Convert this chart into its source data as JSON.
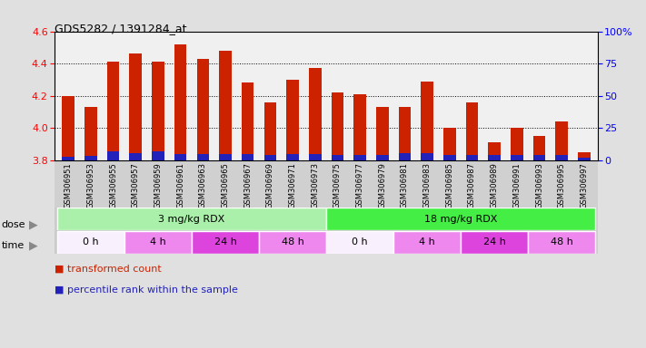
{
  "title": "GDS5282 / 1391284_at",
  "samples": [
    "GSM306951",
    "GSM306953",
    "GSM306955",
    "GSM306957",
    "GSM306959",
    "GSM306961",
    "GSM306963",
    "GSM306965",
    "GSM306967",
    "GSM306969",
    "GSM306971",
    "GSM306973",
    "GSM306975",
    "GSM306977",
    "GSM306979",
    "GSM306981",
    "GSM306983",
    "GSM306985",
    "GSM306987",
    "GSM306989",
    "GSM306991",
    "GSM306993",
    "GSM306995",
    "GSM306997"
  ],
  "transformed_count": [
    4.2,
    4.13,
    4.41,
    4.46,
    4.41,
    4.52,
    4.43,
    4.48,
    4.28,
    4.16,
    4.3,
    4.37,
    4.22,
    4.21,
    4.13,
    4.13,
    4.29,
    4.0,
    4.16,
    3.91,
    4.0,
    3.95,
    4.04,
    3.85
  ],
  "percentile_heights": [
    0.02,
    0.025,
    0.055,
    0.045,
    0.055,
    0.04,
    0.04,
    0.04,
    0.04,
    0.035,
    0.04,
    0.04,
    0.035,
    0.035,
    0.035,
    0.045,
    0.045,
    0.035,
    0.035,
    0.035,
    0.035,
    0.035,
    0.035,
    0.018
  ],
  "ymin": 3.8,
  "ymax": 4.6,
  "yticks_left": [
    3.8,
    4.0,
    4.2,
    4.4,
    4.6
  ],
  "yticks_right": [
    0,
    25,
    50,
    75,
    100
  ],
  "ytick_right_labels": [
    "0",
    "25",
    "50",
    "75",
    "100%"
  ],
  "bar_color": "#cc2200",
  "blue_color": "#2222bb",
  "dose_groups": [
    {
      "label": "3 mg/kg RDX",
      "start": 0,
      "end": 12,
      "color": "#aaf0aa"
    },
    {
      "label": "18 mg/kg RDX",
      "start": 12,
      "end": 24,
      "color": "#44ee44"
    }
  ],
  "time_groups": [
    {
      "label": "0 h",
      "start": 0,
      "end": 3,
      "color": "#f8f0fc"
    },
    {
      "label": "4 h",
      "start": 3,
      "end": 6,
      "color": "#ee88ee"
    },
    {
      "label": "24 h",
      "start": 6,
      "end": 9,
      "color": "#dd44dd"
    },
    {
      "label": "48 h",
      "start": 9,
      "end": 12,
      "color": "#ee88ee"
    },
    {
      "label": "0 h",
      "start": 12,
      "end": 15,
      "color": "#f8f0fc"
    },
    {
      "label": "4 h",
      "start": 15,
      "end": 18,
      "color": "#ee88ee"
    },
    {
      "label": "24 h",
      "start": 18,
      "end": 21,
      "color": "#dd44dd"
    },
    {
      "label": "48 h",
      "start": 21,
      "end": 24,
      "color": "#ee88ee"
    }
  ],
  "fig_bg": "#e0e0e0",
  "plot_bg": "#f0f0f0",
  "xtick_bg": "#d0d0d0"
}
